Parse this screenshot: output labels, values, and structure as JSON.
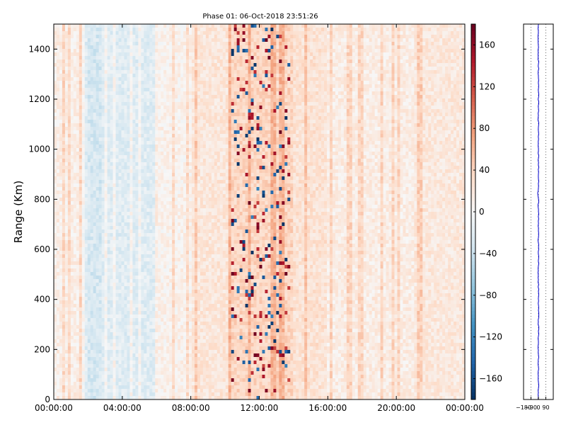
{
  "chart_data": [
    {
      "type": "heatmap",
      "title": "Phase 01: 06-Oct-2018 23:51:26",
      "ylabel": "Range (Km)",
      "xlabel": "",
      "ylim": [
        0,
        1500
      ],
      "y_ticks": [
        0,
        200,
        400,
        600,
        800,
        1000,
        1200,
        1400
      ],
      "x_ticks": [
        "00:00:00",
        "04:00:00",
        "08:00:00",
        "12:00:00",
        "16:00:00",
        "20:00:00",
        "00:00:00"
      ],
      "x_range_hours": [
        0,
        24
      ],
      "colormap": "RdBu_r",
      "colorbar": {
        "range": [
          -180,
          180
        ],
        "ticks": [
          "160",
          "120",
          "80",
          "40",
          "0",
          "−40",
          "−80",
          "−120",
          "−160"
        ],
        "tick_values": [
          160,
          120,
          80,
          40,
          0,
          -40,
          -80,
          -120,
          -160
        ]
      },
      "grid": false
    },
    {
      "type": "line",
      "title": "",
      "xlim": [
        -180,
        180
      ],
      "x_ticks": [
        "−180",
        "−90",
        "0",
        "90"
      ],
      "x_tick_values": [
        -180,
        -90,
        0,
        90
      ],
      "ylim": [
        0,
        1500
      ],
      "series_color": "#0000cc",
      "profile_mean": 0,
      "grid": "dotted-vertical"
    }
  ]
}
